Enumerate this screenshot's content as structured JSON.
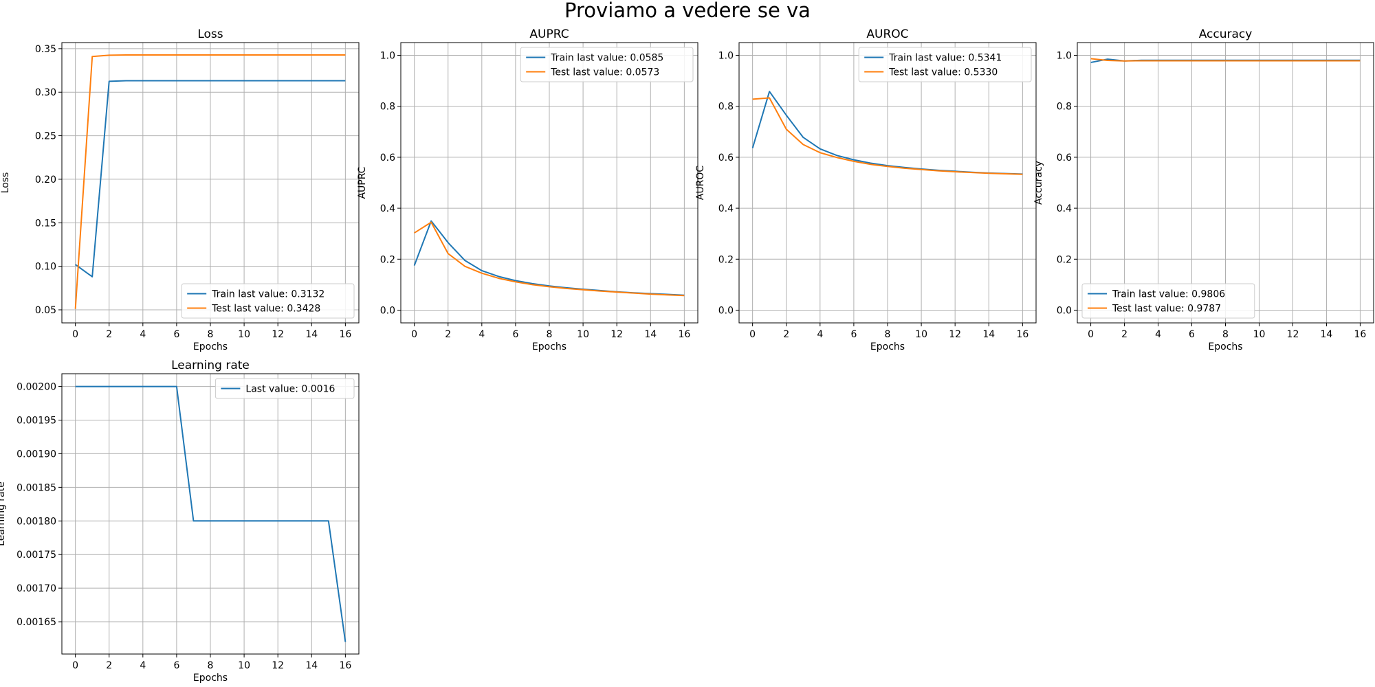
{
  "figure_title": "Proviamo a vedere se va",
  "colors": {
    "train": "#1f77b4",
    "test": "#ff7f0e"
  },
  "chart_data": [
    {
      "type": "line",
      "title": "Loss",
      "xlabel": "Epochs",
      "ylabel": "Loss",
      "xlim": [
        -0.8,
        16.8
      ],
      "ylim": [
        0.035,
        0.357
      ],
      "xticks": [
        0,
        2,
        4,
        6,
        8,
        10,
        12,
        14,
        16
      ],
      "yticks": [
        0.05,
        0.1,
        0.15,
        0.2,
        0.25,
        0.3,
        0.35
      ],
      "ytick_labels": [
        "0.05",
        "0.10",
        "0.15",
        "0.20",
        "0.25",
        "0.30",
        "0.35"
      ],
      "grid": true,
      "legend_loc": "lower-right",
      "x": [
        0,
        1,
        2,
        3,
        4,
        5,
        6,
        7,
        8,
        9,
        10,
        11,
        12,
        13,
        14,
        15,
        16
      ],
      "series": [
        {
          "name": "Train last value: 0.3132",
          "color": "train",
          "values": [
            0.102,
            0.088,
            0.3125,
            0.3132,
            0.3132,
            0.3132,
            0.3132,
            0.3132,
            0.3132,
            0.3132,
            0.3132,
            0.3132,
            0.3132,
            0.3132,
            0.3132,
            0.3132,
            0.3132
          ]
        },
        {
          "name": "Test last value: 0.3428",
          "color": "test",
          "values": [
            0.051,
            0.341,
            0.3425,
            0.3428,
            0.3428,
            0.3428,
            0.3428,
            0.3428,
            0.3428,
            0.3428,
            0.3428,
            0.3428,
            0.3428,
            0.3428,
            0.3428,
            0.3428,
            0.3428
          ]
        }
      ]
    },
    {
      "type": "line",
      "title": "AUPRC",
      "xlabel": "Epochs",
      "ylabel": "AUPRC",
      "xlim": [
        -0.8,
        16.8
      ],
      "ylim": [
        -0.05,
        1.05
      ],
      "xticks": [
        0,
        2,
        4,
        6,
        8,
        10,
        12,
        14,
        16
      ],
      "yticks": [
        0.0,
        0.2,
        0.4,
        0.6,
        0.8,
        1.0
      ],
      "ytick_labels": [
        "0.0",
        "0.2",
        "0.4",
        "0.6",
        "0.8",
        "1.0"
      ],
      "grid": true,
      "legend_loc": "upper-right",
      "x": [
        0,
        1,
        2,
        3,
        4,
        5,
        6,
        7,
        8,
        9,
        10,
        11,
        12,
        13,
        14,
        15,
        16
      ],
      "series": [
        {
          "name": "Train last value: 0.0585",
          "color": "train",
          "values": [
            0.175,
            0.35,
            0.265,
            0.195,
            0.155,
            0.132,
            0.116,
            0.104,
            0.095,
            0.088,
            0.082,
            0.077,
            0.072,
            0.068,
            0.065,
            0.062,
            0.0585
          ]
        },
        {
          "name": "Test last value: 0.0573",
          "color": "test",
          "values": [
            0.303,
            0.345,
            0.222,
            0.172,
            0.145,
            0.125,
            0.111,
            0.1,
            0.092,
            0.085,
            0.08,
            0.075,
            0.071,
            0.067,
            0.063,
            0.06,
            0.0573
          ]
        }
      ]
    },
    {
      "type": "line",
      "title": "AUROC",
      "xlabel": "Epochs",
      "ylabel": "AUROC",
      "xlim": [
        -0.8,
        16.8
      ],
      "ylim": [
        -0.05,
        1.05
      ],
      "xticks": [
        0,
        2,
        4,
        6,
        8,
        10,
        12,
        14,
        16
      ],
      "yticks": [
        0.0,
        0.2,
        0.4,
        0.6,
        0.8,
        1.0
      ],
      "ytick_labels": [
        "0.0",
        "0.2",
        "0.4",
        "0.6",
        "0.8",
        "1.0"
      ],
      "grid": true,
      "legend_loc": "upper-right",
      "x": [
        0,
        1,
        2,
        3,
        4,
        5,
        6,
        7,
        8,
        9,
        10,
        11,
        12,
        13,
        14,
        15,
        16
      ],
      "series": [
        {
          "name": "Train last value: 0.5341",
          "color": "train",
          "values": [
            0.636,
            0.858,
            0.765,
            0.678,
            0.633,
            0.607,
            0.59,
            0.577,
            0.567,
            0.56,
            0.554,
            0.549,
            0.545,
            0.541,
            0.538,
            0.536,
            0.5341
          ]
        },
        {
          "name": "Test last value: 0.5330",
          "color": "test",
          "values": [
            0.828,
            0.833,
            0.71,
            0.65,
            0.618,
            0.599,
            0.584,
            0.572,
            0.564,
            0.557,
            0.552,
            0.547,
            0.543,
            0.54,
            0.537,
            0.535,
            0.533
          ]
        }
      ]
    },
    {
      "type": "line",
      "title": "Accuracy",
      "xlabel": "Epochs",
      "ylabel": "Accuracy",
      "xlim": [
        -0.8,
        16.8
      ],
      "ylim": [
        -0.05,
        1.05
      ],
      "xticks": [
        0,
        2,
        4,
        6,
        8,
        10,
        12,
        14,
        16
      ],
      "yticks": [
        0.0,
        0.2,
        0.4,
        0.6,
        0.8,
        1.0
      ],
      "ytick_labels": [
        "0.0",
        "0.2",
        "0.4",
        "0.6",
        "0.8",
        "1.0"
      ],
      "grid": true,
      "legend_loc": "lower-left",
      "x": [
        0,
        1,
        2,
        3,
        4,
        5,
        6,
        7,
        8,
        9,
        10,
        11,
        12,
        13,
        14,
        15,
        16
      ],
      "series": [
        {
          "name": "Train last value: 0.9806",
          "color": "train",
          "values": [
            0.972,
            0.985,
            0.978,
            0.9806,
            0.9806,
            0.9806,
            0.9806,
            0.9806,
            0.9806,
            0.9806,
            0.9806,
            0.9806,
            0.9806,
            0.9806,
            0.9806,
            0.9806,
            0.9806
          ]
        },
        {
          "name": "Test last value: 0.9787",
          "color": "test",
          "values": [
            0.987,
            0.98,
            0.978,
            0.9787,
            0.9787,
            0.9787,
            0.9787,
            0.9787,
            0.9787,
            0.9787,
            0.9787,
            0.9787,
            0.9787,
            0.9787,
            0.9787,
            0.9787,
            0.9787
          ]
        }
      ]
    },
    {
      "type": "line",
      "title": "Learning rate",
      "xlabel": "Epochs",
      "ylabel": "Learning rate",
      "xlim": [
        -0.8,
        16.8
      ],
      "ylim": [
        0.001602,
        0.002019
      ],
      "xticks": [
        0,
        2,
        4,
        6,
        8,
        10,
        12,
        14,
        16
      ],
      "yticks": [
        0.00165,
        0.0017,
        0.00175,
        0.0018,
        0.00185,
        0.0019,
        0.00195,
        0.002
      ],
      "ytick_labels": [
        "0.00165",
        "0.00170",
        "0.00175",
        "0.00180",
        "0.00185",
        "0.00190",
        "0.00195",
        "0.00200"
      ],
      "grid": true,
      "legend_loc": "upper-right",
      "x": [
        0,
        1,
        2,
        3,
        4,
        5,
        6,
        7,
        8,
        9,
        10,
        11,
        12,
        13,
        14,
        15,
        16
      ],
      "series": [
        {
          "name": "Last value: 0.0016",
          "color": "train",
          "values": [
            0.002,
            0.002,
            0.002,
            0.002,
            0.002,
            0.002,
            0.002,
            0.0018,
            0.0018,
            0.0018,
            0.0018,
            0.0018,
            0.0018,
            0.0018,
            0.0018,
            0.0018,
            0.00162
          ]
        }
      ]
    }
  ]
}
